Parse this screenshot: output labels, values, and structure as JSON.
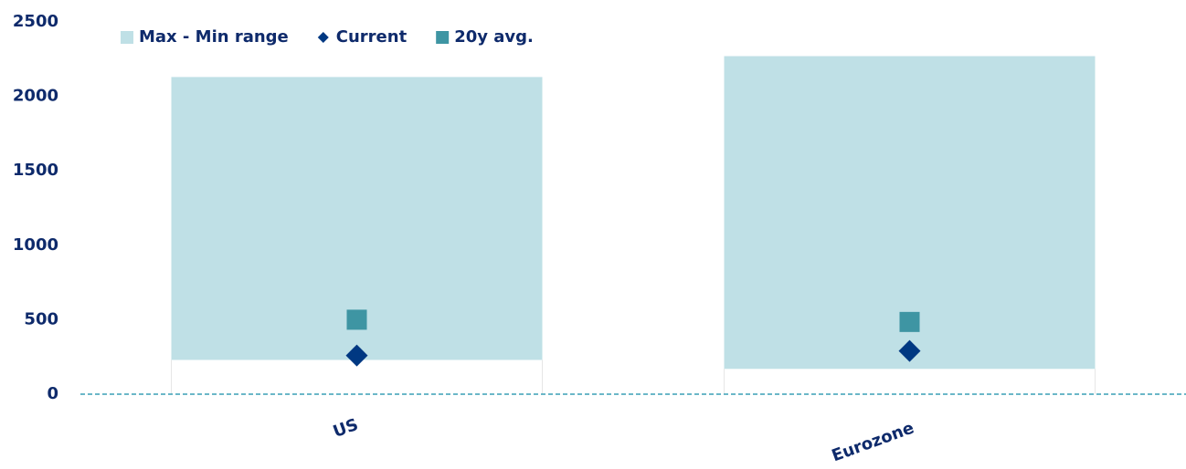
{
  "chart_data": {
    "type": "range",
    "categories": [
      "US",
      "Eurozone"
    ],
    "series": [
      {
        "name": "Max - Min range",
        "color": "#bfe0e6",
        "low": [
          230,
          170
        ],
        "high": [
          2130,
          2270
        ]
      },
      {
        "name": "Current",
        "color": "#003882",
        "marker": "diamond",
        "values": [
          260,
          290
        ]
      },
      {
        "name": "20y avg.",
        "color": "#3e95a3",
        "marker": "square",
        "values": [
          500,
          485
        ]
      }
    ],
    "ylim": [
      0,
      2500
    ],
    "yticks": [
      0,
      500,
      1000,
      1500,
      2000,
      2500
    ],
    "legend": "top"
  }
}
